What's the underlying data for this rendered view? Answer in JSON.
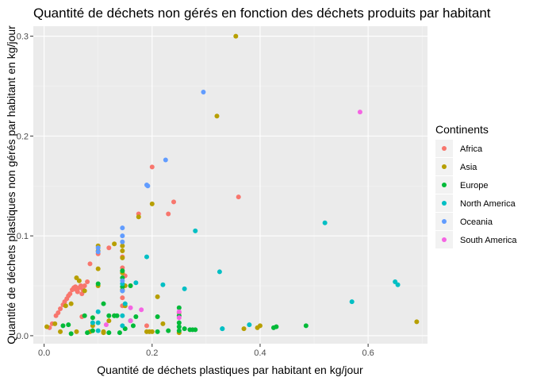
{
  "chart_data": {
    "type": "scatter",
    "title": "Quantité de déchets non gérés en fonction des déchets produits par habitant",
    "xlabel": "Quantité de déchets plastiques par habitant en kg/jour",
    "ylabel": "Quantité de déchets plastiques non gérés par habitant en kg/jour",
    "xlim": [
      -0.02,
      0.71
    ],
    "ylim": [
      -0.008,
      0.31
    ],
    "x_ticks": [
      0.0,
      0.2,
      0.4,
      0.6
    ],
    "x_tick_labels": [
      "0.0",
      "0.2",
      "0.4",
      "0.6"
    ],
    "y_ticks": [
      0.0,
      0.1,
      0.2,
      0.3
    ],
    "y_tick_labels": [
      "0.0",
      "0.1",
      "0.2",
      "0.3"
    ],
    "grid": true,
    "legend": {
      "title": "Continents",
      "position": "right"
    },
    "series": [
      {
        "name": "Africa",
        "color": "#F8766D",
        "points": [
          [
            0.01,
            0.008
          ],
          [
            0.015,
            0.012
          ],
          [
            0.022,
            0.02
          ],
          [
            0.026,
            0.023
          ],
          [
            0.03,
            0.027
          ],
          [
            0.035,
            0.031
          ],
          [
            0.038,
            0.034
          ],
          [
            0.042,
            0.037
          ],
          [
            0.045,
            0.04
          ],
          [
            0.048,
            0.042
          ],
          [
            0.052,
            0.046
          ],
          [
            0.055,
            0.048
          ],
          [
            0.058,
            0.049
          ],
          [
            0.06,
            0.046
          ],
          [
            0.062,
            0.044
          ],
          [
            0.065,
            0.048
          ],
          [
            0.068,
            0.05
          ],
          [
            0.07,
            0.042
          ],
          [
            0.072,
            0.046
          ],
          [
            0.075,
            0.05
          ],
          [
            0.08,
            0.054
          ],
          [
            0.085,
            0.072
          ],
          [
            0.1,
            0.082
          ],
          [
            0.12,
            0.088
          ],
          [
            0.145,
            0.079
          ],
          [
            0.145,
            0.068
          ],
          [
            0.15,
            0.06
          ],
          [
            0.16,
            0.05
          ],
          [
            0.175,
            0.122
          ],
          [
            0.2,
            0.169
          ],
          [
            0.23,
            0.122
          ],
          [
            0.24,
            0.134
          ],
          [
            0.36,
            0.139
          ],
          [
            0.145,
            0.038
          ],
          [
            0.145,
            0.03
          ],
          [
            0.07,
            0.019
          ],
          [
            0.25,
            0.023
          ],
          [
            0.19,
            0.01
          ]
        ]
      },
      {
        "name": "Asia",
        "color": "#B79F00",
        "points": [
          [
            0.355,
            0.3
          ],
          [
            0.32,
            0.22
          ],
          [
            0.2,
            0.132
          ],
          [
            0.175,
            0.119
          ],
          [
            0.13,
            0.092
          ],
          [
            0.1,
            0.09
          ],
          [
            0.1,
            0.085
          ],
          [
            0.1,
            0.067
          ],
          [
            0.1,
            0.05
          ],
          [
            0.09,
            0.01
          ],
          [
            0.06,
            0.058
          ],
          [
            0.065,
            0.055
          ],
          [
            0.075,
            0.045
          ],
          [
            0.145,
            0.09
          ],
          [
            0.145,
            0.085
          ],
          [
            0.145,
            0.078
          ],
          [
            0.145,
            0.063
          ],
          [
            0.145,
            0.046
          ],
          [
            0.15,
            0.05
          ],
          [
            0.15,
            0.03
          ],
          [
            0.21,
            0.039
          ],
          [
            0.12,
            0.015
          ],
          [
            0.11,
            0.003
          ],
          [
            0.19,
            0.004
          ],
          [
            0.2,
            0.004
          ],
          [
            0.04,
            0.03
          ],
          [
            0.05,
            0.032
          ],
          [
            0.005,
            0.009
          ],
          [
            0.02,
            0.012
          ],
          [
            0.03,
            0.004
          ],
          [
            0.06,
            0.004
          ],
          [
            0.085,
            0.004
          ],
          [
            0.11,
            0.004
          ],
          [
            0.37,
            0.007
          ],
          [
            0.395,
            0.008
          ],
          [
            0.4,
            0.01
          ],
          [
            0.69,
            0.014
          ],
          [
            0.22,
            0.012
          ],
          [
            0.13,
            0.02
          ],
          [
            0.25,
            0.003
          ],
          [
            0.195,
            0.004
          ]
        ]
      },
      {
        "name": "Europe",
        "color": "#00BA38",
        "points": [
          [
            0.035,
            0.01
          ],
          [
            0.045,
            0.011
          ],
          [
            0.05,
            0.002
          ],
          [
            0.075,
            0.02
          ],
          [
            0.08,
            0.003
          ],
          [
            0.09,
            0.018
          ],
          [
            0.09,
            0.005
          ],
          [
            0.1,
            0.052
          ],
          [
            0.11,
            0.032
          ],
          [
            0.12,
            0.02
          ],
          [
            0.13,
            0.02
          ],
          [
            0.135,
            0.02
          ],
          [
            0.14,
            0.003
          ],
          [
            0.145,
            0.065
          ],
          [
            0.145,
            0.058
          ],
          [
            0.145,
            0.049
          ],
          [
            0.15,
            0.007
          ],
          [
            0.165,
            0.01
          ],
          [
            0.16,
            0.05
          ],
          [
            0.21,
            0.019
          ],
          [
            0.21,
            0.004
          ],
          [
            0.23,
            0.005
          ],
          [
            0.25,
            0.028
          ],
          [
            0.25,
            0.02
          ],
          [
            0.25,
            0.013
          ],
          [
            0.25,
            0.009
          ],
          [
            0.25,
            0.005
          ],
          [
            0.26,
            0.007
          ],
          [
            0.27,
            0.006
          ],
          [
            0.275,
            0.006
          ],
          [
            0.28,
            0.006
          ],
          [
            0.425,
            0.008
          ],
          [
            0.43,
            0.009
          ],
          [
            0.485,
            0.01
          ],
          [
            0.12,
            0.003
          ],
          [
            0.16,
            0.015
          ],
          [
            0.17,
            0.019
          ]
        ]
      },
      {
        "name": "North America",
        "color": "#00BFC4",
        "points": [
          [
            0.65,
            0.054
          ],
          [
            0.655,
            0.051
          ],
          [
            0.57,
            0.034
          ],
          [
            0.52,
            0.113
          ],
          [
            0.28,
            0.105
          ],
          [
            0.325,
            0.064
          ],
          [
            0.26,
            0.047
          ],
          [
            0.22,
            0.051
          ],
          [
            0.19,
            0.079
          ],
          [
            0.17,
            0.053
          ],
          [
            0.145,
            0.052
          ],
          [
            0.145,
            0.045
          ],
          [
            0.15,
            0.032
          ],
          [
            0.145,
            0.02
          ],
          [
            0.145,
            0.01
          ],
          [
            0.1,
            0.013
          ],
          [
            0.1,
            0.005
          ],
          [
            0.09,
            0.013
          ],
          [
            0.1,
            0.024
          ],
          [
            0.38,
            0.011
          ],
          [
            0.33,
            0.007
          ],
          [
            0.33,
            0.007
          ]
        ]
      },
      {
        "name": "Oceania",
        "color": "#619CFF",
        "points": [
          [
            0.295,
            0.244
          ],
          [
            0.225,
            0.176
          ],
          [
            0.19,
            0.151
          ],
          [
            0.192,
            0.15
          ],
          [
            0.145,
            0.108
          ],
          [
            0.145,
            0.1
          ],
          [
            0.145,
            0.094
          ],
          [
            0.1,
            0.088
          ],
          [
            0.1,
            0.084
          ],
          [
            0.145,
            0.055
          ],
          [
            0.145,
            0.045
          ]
        ]
      },
      {
        "name": "South America",
        "color": "#F564E3",
        "points": [
          [
            0.585,
            0.224
          ],
          [
            0.16,
            0.028
          ],
          [
            0.18,
            0.026
          ],
          [
            0.25,
            0.024
          ],
          [
            0.25,
            0.018
          ],
          [
            0.115,
            0.011
          ],
          [
            0.16,
            0.015
          ]
        ]
      }
    ]
  }
}
